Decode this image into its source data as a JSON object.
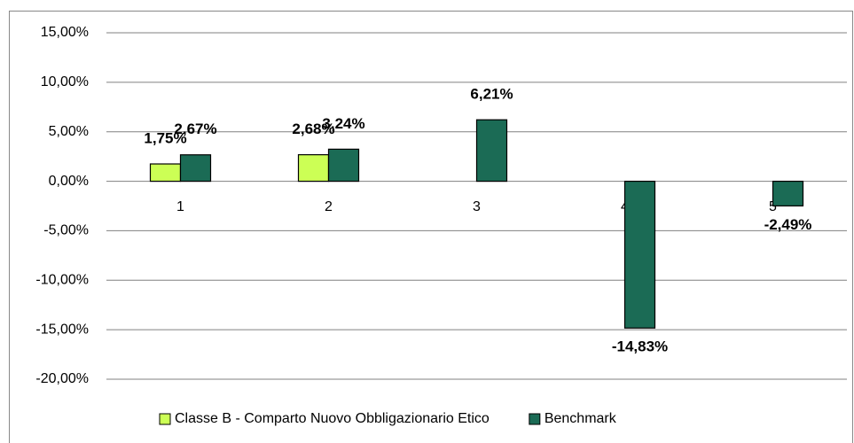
{
  "chart_data": {
    "type": "bar",
    "categories": [
      "1",
      "2",
      "3",
      "4",
      "5"
    ],
    "series": [
      {
        "name": "Classe B - Comparto Nuovo Obbligazionario Etico",
        "color": "#ccff55",
        "values": [
          1.75,
          2.68,
          null,
          null,
          null
        ],
        "value_labels": [
          "1,75%",
          "2,68%",
          null,
          null,
          null
        ]
      },
      {
        "name": "Benchmark",
        "color": "#1b6b55",
        "values": [
          2.67,
          3.24,
          6.21,
          -14.83,
          -2.49
        ],
        "value_labels": [
          "2,67%",
          "3,24%",
          "6,21%",
          "-14,83%",
          "-2,49%"
        ]
      }
    ],
    "ylim": [
      -20,
      15
    ],
    "yticks": [
      {
        "value": -20,
        "label": "-20,00%"
      },
      {
        "value": -15,
        "label": "-15,00%"
      },
      {
        "value": -10,
        "label": "-10,00%"
      },
      {
        "value": -5,
        "label": "-5,00%"
      },
      {
        "value": 0,
        "label": "0,00%"
      },
      {
        "value": 5,
        "label": "5,00%"
      },
      {
        "value": 10,
        "label": "10,00%"
      },
      {
        "value": 15,
        "label": "15,00%"
      }
    ],
    "grid": true,
    "legend": "bottom"
  }
}
